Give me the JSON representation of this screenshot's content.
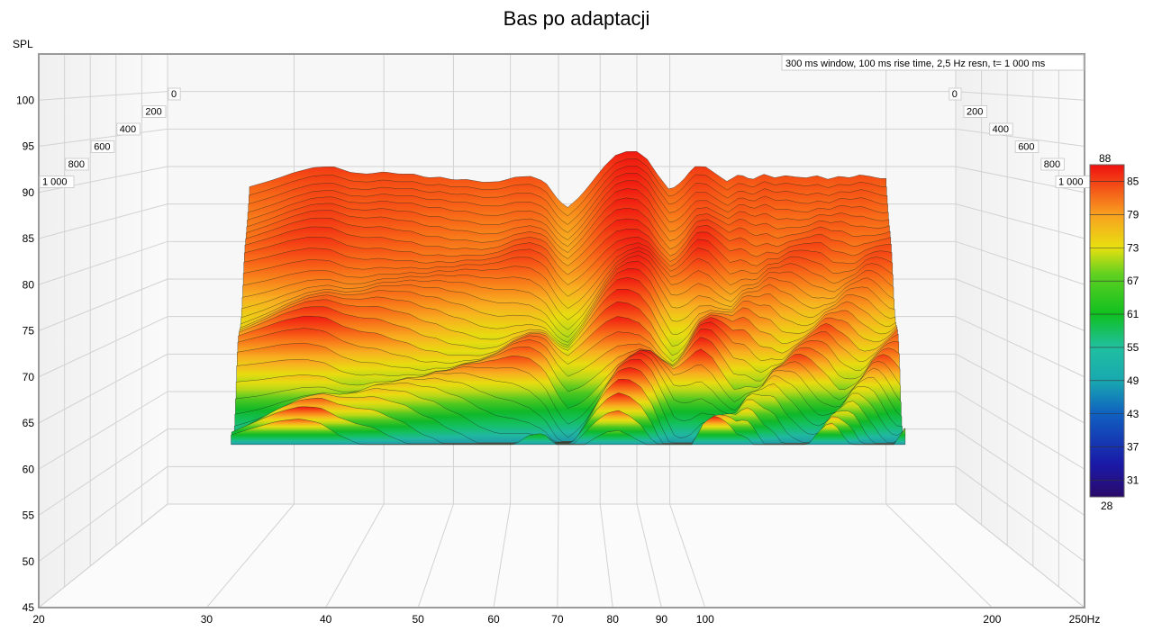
{
  "chart_data": {
    "type": "waterfall",
    "title": "Bas po adaptacji",
    "settings_text": "300 ms window, 100 ms rise time,  2,5 Hz resn, t= 1 000 ms",
    "y_axis": {
      "label": "SPL",
      "range": [
        45,
        105
      ],
      "ticks": [
        "100",
        "95",
        "90",
        "85",
        "80",
        "75",
        "70",
        "65",
        "60",
        "55",
        "50",
        "45"
      ]
    },
    "x_axis": {
      "scale": "log",
      "range": [
        20,
        250
      ],
      "unit": "Hz",
      "ticks": [
        "20",
        "30",
        "40",
        "50",
        "60",
        "70",
        "80",
        "90",
        "100",
        "200",
        "250Hz"
      ]
    },
    "time_axis": {
      "unit": "ms",
      "ticks": [
        "0",
        "200",
        "400",
        "600",
        "800",
        "1 000"
      ]
    },
    "colorbar": {
      "range": [
        28,
        88
      ],
      "min_label": "28",
      "max_label": "88",
      "ticks": [
        "85",
        "79",
        "73",
        "67",
        "61",
        "55",
        "49",
        "43",
        "37",
        "31"
      ]
    },
    "front_slice_spl": {
      "freq_hz": [
        26,
        28,
        30,
        32,
        34,
        36,
        38,
        40,
        42,
        44,
        46,
        48,
        50,
        52,
        55,
        58,
        61,
        64,
        67,
        70,
        72,
        75,
        78,
        81,
        84,
        87,
        90,
        93,
        96,
        100,
        104,
        108,
        112,
        116,
        120,
        125,
        130,
        135,
        140,
        145,
        150,
        155,
        160,
        166,
        172,
        178,
        184,
        190,
        196,
        200
      ],
      "spl_db": [
        87.3,
        88.2,
        89.2,
        89.9,
        90.0,
        89.2,
        89.0,
        89.3,
        89.0,
        89.0,
        88.5,
        88.6,
        88.2,
        88.3,
        87.9,
        88.0,
        88.6,
        88.7,
        88.0,
        85.5,
        84.5,
        86.0,
        88.0,
        90.0,
        91.5,
        92.0,
        92.0,
        91.0,
        89.0,
        86.8,
        88.0,
        90.0,
        90.0,
        89.0,
        88.0,
        89.0,
        88.2,
        89.0,
        88.5,
        88.8,
        88.6,
        88.5,
        88.8,
        88.3,
        88.7,
        88.5,
        88.9,
        88.7,
        88.4,
        88.4
      ]
    },
    "grid": true,
    "colorbar_position": "right"
  }
}
